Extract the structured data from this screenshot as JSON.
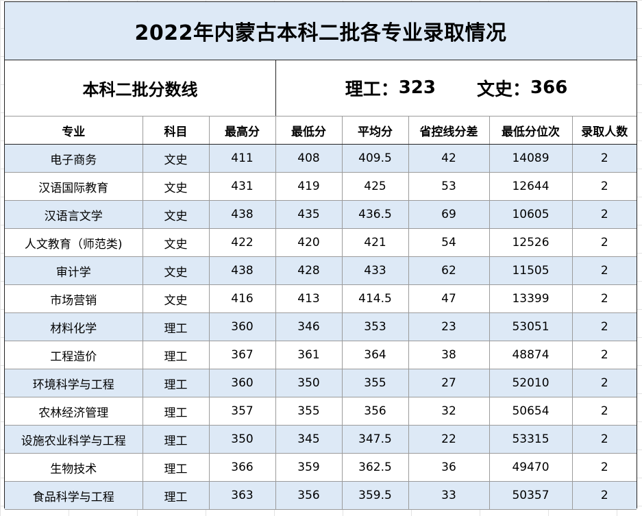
{
  "title": "2022年内蒙古本科二批各专业录取情况",
  "score_line": {
    "label": "本科二批分数线",
    "science_label": "理工：",
    "science_value": "323",
    "liberal_label": "文史：",
    "liberal_value": "366"
  },
  "columns": [
    "专业",
    "科目",
    "最高分",
    "最低分",
    "平均分",
    "省控线分差",
    "最低分位次",
    "录取人数"
  ],
  "rows": [
    [
      "电子商务",
      "文史",
      "411",
      "408",
      "409.5",
      "42",
      "14089",
      "2"
    ],
    [
      "汉语国际教育",
      "文史",
      "431",
      "419",
      "425",
      "53",
      "12644",
      "2"
    ],
    [
      "汉语言文学",
      "文史",
      "438",
      "435",
      "436.5",
      "69",
      "10605",
      "2"
    ],
    [
      "人文教育（师范类)",
      "文史",
      "422",
      "420",
      "421",
      "54",
      "12526",
      "2"
    ],
    [
      "审计学",
      "文史",
      "438",
      "428",
      "433",
      "62",
      "11505",
      "2"
    ],
    [
      "市场营销",
      "文史",
      "416",
      "413",
      "414.5",
      "47",
      "13399",
      "2"
    ],
    [
      "材料化学",
      "理工",
      "360",
      "346",
      "353",
      "23",
      "53051",
      "2"
    ],
    [
      "工程造价",
      "理工",
      "367",
      "361",
      "364",
      "38",
      "48874",
      "2"
    ],
    [
      "环境科学与工程",
      "理工",
      "360",
      "350",
      "355",
      "27",
      "52010",
      "2"
    ],
    [
      "农林经济管理",
      "理工",
      "357",
      "355",
      "356",
      "32",
      "50654",
      "2"
    ],
    [
      "设施农业科学与工程",
      "理工",
      "350",
      "345",
      "347.5",
      "22",
      "53315",
      "2"
    ],
    [
      "生物技术",
      "理工",
      "366",
      "359",
      "362.5",
      "36",
      "49470",
      "2"
    ],
    [
      "食品科学与工程",
      "理工",
      "363",
      "356",
      "359.5",
      "33",
      "50357",
      "2"
    ]
  ]
}
